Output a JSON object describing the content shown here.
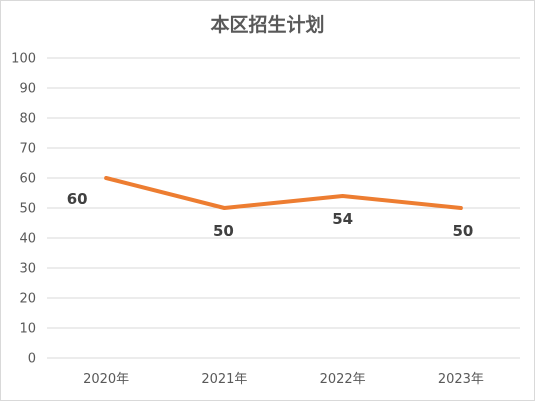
{
  "chart_data": {
    "type": "line",
    "title": "本区招生计划",
    "categories": [
      "2020年",
      "2021年",
      "2022年",
      "2023年"
    ],
    "series": [
      {
        "values": [
          60,
          50,
          54,
          50
        ],
        "color": "#ED7D31"
      }
    ],
    "data_labels": [
      "60",
      "50",
      "54",
      "50"
    ],
    "ylim": [
      0,
      100
    ],
    "yticks": [
      0,
      10,
      20,
      30,
      40,
      50,
      60,
      70,
      80,
      90,
      100
    ],
    "ytick_labels": [
      "0",
      "10",
      "20",
      "30",
      "40",
      "50",
      "60",
      "70",
      "80",
      "90",
      "100"
    ],
    "grid": true,
    "legend": "none"
  }
}
